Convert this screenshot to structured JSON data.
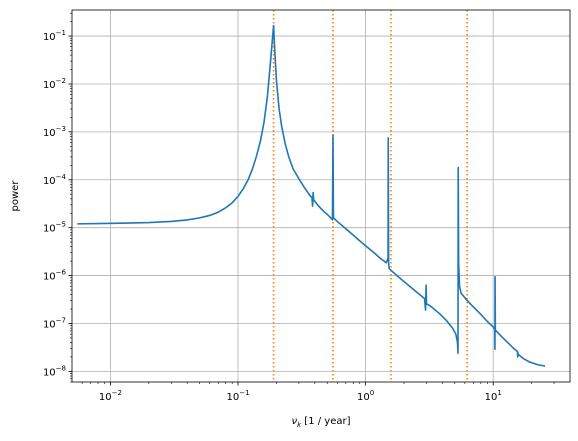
{
  "chart_data": {
    "type": "line",
    "xlabel": "ν",
    "xlabel_sub": "k",
    "xlabel_unit": " [1 / year]",
    "ylabel": "power",
    "xscale": "log",
    "yscale": "log",
    "xlim": [
      0.005,
      40
    ],
    "ylim": [
      6e-09,
      0.35
    ],
    "grid": true,
    "x_ticks": [
      {
        "value": 0.01,
        "base": "10",
        "exp": "−2"
      },
      {
        "value": 0.1,
        "base": "10",
        "exp": "−1"
      },
      {
        "value": 1,
        "base": "10",
        "exp": "0"
      },
      {
        "value": 10,
        "base": "10",
        "exp": "1"
      }
    ],
    "y_ticks": [
      {
        "value": 1e-08,
        "base": "10",
        "exp": "−8"
      },
      {
        "value": 1e-07,
        "base": "10",
        "exp": "−7"
      },
      {
        "value": 1e-06,
        "base": "10",
        "exp": "−6"
      },
      {
        "value": 1e-05,
        "base": "10",
        "exp": "−5"
      },
      {
        "value": 0.0001,
        "base": "10",
        "exp": "−4"
      },
      {
        "value": 0.001,
        "base": "10",
        "exp": "−3"
      },
      {
        "value": 0.01,
        "base": "10",
        "exp": "−2"
      },
      {
        "value": 0.1,
        "base": "10",
        "exp": "−1"
      }
    ],
    "series": [
      {
        "color": "#1f77b4",
        "points": [
          [
            0.0055,
            1.2e-05
          ],
          [
            0.008,
            1.22e-05
          ],
          [
            0.012,
            1.24e-05
          ],
          [
            0.02,
            1.28e-05
          ],
          [
            0.03,
            1.35e-05
          ],
          [
            0.04,
            1.45e-05
          ],
          [
            0.05,
            1.6e-05
          ],
          [
            0.06,
            1.8e-05
          ],
          [
            0.07,
            2.1e-05
          ],
          [
            0.08,
            2.6e-05
          ],
          [
            0.09,
            3.3e-05
          ],
          [
            0.1,
            4.5e-05
          ],
          [
            0.11,
            6.5e-05
          ],
          [
            0.12,
            0.0001
          ],
          [
            0.13,
            0.00017
          ],
          [
            0.14,
            0.00032
          ],
          [
            0.15,
            0.00065
          ],
          [
            0.16,
            0.0016
          ],
          [
            0.17,
            0.0055
          ],
          [
            0.18,
            0.03
          ],
          [
            0.19,
            0.165
          ],
          [
            0.195,
            0.04
          ],
          [
            0.2,
            0.012
          ],
          [
            0.21,
            0.003
          ],
          [
            0.22,
            0.0013
          ],
          [
            0.235,
            0.00055
          ],
          [
            0.25,
            0.0003
          ],
          [
            0.27,
            0.00017
          ],
          [
            0.3,
            0.000105
          ],
          [
            0.33,
            7e-05
          ],
          [
            0.36,
            5e-05
          ],
          [
            0.38,
            4.2e-05
          ],
          [
            0.384,
            2.8e-05
          ],
          [
            0.388,
            5.4e-05
          ],
          [
            0.392,
            3.8e-05
          ],
          [
            0.42,
            3e-05
          ],
          [
            0.46,
            2.3e-05
          ],
          [
            0.5,
            1.9e-05
          ],
          [
            0.54,
            1.55e-05
          ],
          [
            0.55,
            1.45e-05
          ],
          [
            0.555,
            0.00085
          ],
          [
            0.56,
            1.6e-05
          ],
          [
            0.6,
            1.35e-05
          ],
          [
            0.7,
            9.5e-06
          ],
          [
            0.8,
            7e-06
          ],
          [
            0.9,
            5.3e-06
          ],
          [
            1.0,
            4.2e-06
          ],
          [
            1.1,
            3.4e-06
          ],
          [
            1.2,
            2.8e-06
          ],
          [
            1.3,
            2.3e-06
          ],
          [
            1.4,
            2e-06
          ],
          [
            1.45,
            1.85e-06
          ],
          [
            1.5,
            2.3e-06
          ],
          [
            1.505,
            0.00075
          ],
          [
            1.515,
            1.8e-06
          ],
          [
            1.53,
            1.4e-06
          ],
          [
            1.6,
            1.25e-06
          ],
          [
            1.8,
            9.5e-07
          ],
          [
            2.0,
            7.5e-07
          ],
          [
            2.3,
            5.5e-07
          ],
          [
            2.6,
            4.2e-07
          ],
          [
            2.9,
            3.3e-07
          ],
          [
            2.95,
            1.9e-07
          ],
          [
            2.98,
            6.3e-07
          ],
          [
            3.0,
            2.6e-07
          ],
          [
            3.3,
            2.2e-07
          ],
          [
            3.8,
            1.6e-07
          ],
          [
            4.3,
            1.15e-07
          ],
          [
            4.8,
            8e-08
          ],
          [
            5.1,
            6e-08
          ],
          [
            5.25,
            4e-08
          ],
          [
            5.3,
            2.4e-08
          ],
          [
            5.32,
            0.00018
          ],
          [
            5.36,
            1.8e-06
          ],
          [
            5.45,
            6e-07
          ],
          [
            5.6,
            4.3e-07
          ],
          [
            6.2,
            3.1e-07
          ],
          [
            7.0,
            2.2e-07
          ],
          [
            8.0,
            1.55e-07
          ],
          [
            9.0,
            1.1e-07
          ],
          [
            10.0,
            8.5e-08
          ],
          [
            10.3,
            7.5e-08
          ],
          [
            10.32,
            2.9e-08
          ],
          [
            10.35,
            9.5e-07
          ],
          [
            10.4,
            7.3e-08
          ],
          [
            11.5,
            5.5e-08
          ],
          [
            13.0,
            4e-08
          ],
          [
            14.5,
            3e-08
          ],
          [
            15.5,
            2.6e-08
          ],
          [
            15.55,
            2e-08
          ],
          [
            15.6,
            2.5e-08
          ],
          [
            15.65,
            2.3e-08
          ],
          [
            17.0,
            1.9e-08
          ],
          [
            19.0,
            1.6e-08
          ],
          [
            21.0,
            1.45e-08
          ],
          [
            23.0,
            1.35e-08
          ],
          [
            25.5,
            1.3e-08
          ]
        ]
      }
    ],
    "vlines": [
      {
        "x": 0.19,
        "color": "#ff7f0e",
        "style": "dotted"
      },
      {
        "x": 0.555,
        "color": "#ff7f0e",
        "style": "dotted"
      },
      {
        "x": 1.58,
        "color": "#ff7f0e",
        "style": "dotted"
      },
      {
        "x": 6.25,
        "color": "#ff7f0e",
        "style": "dotted"
      }
    ]
  }
}
